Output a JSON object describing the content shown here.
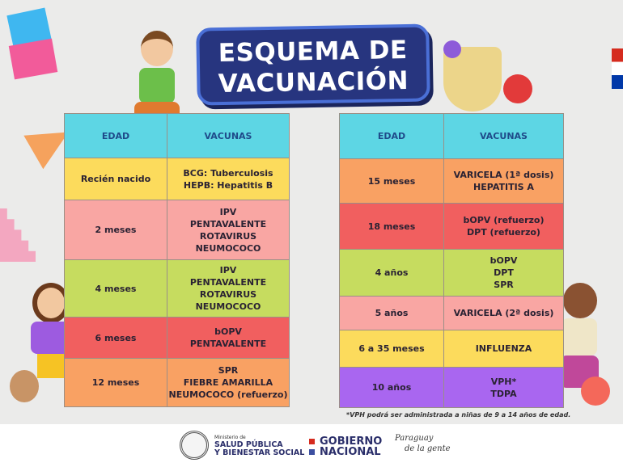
{
  "title": "ESQUEMA DE VACUNACIÓN",
  "headers": {
    "age": "EDAD",
    "vaccines": "VACUNAS"
  },
  "left_table": [
    {
      "age": "Recién nacido",
      "vaccines": "BCG: Tuberculosis\nHEPB: Hepatitis B",
      "color": "#fcdb5c"
    },
    {
      "age": "2 meses",
      "vaccines": "IPV\nPENTAVALENTE\nROTAVIRUS\nNEUMOCOCO",
      "color": "#f9a6a3"
    },
    {
      "age": "4 meses",
      "vaccines": "IPV\nPENTAVALENTE\nROTAVIRUS\nNEUMOCOCO",
      "color": "#c6dc5f"
    },
    {
      "age": "6 meses",
      "vaccines": "bOPV\nPENTAVALENTE",
      "color": "#f15f5f"
    },
    {
      "age": "12 meses",
      "vaccines": "SPR\nFIEBRE AMARILLA\nNEUMOCOCO (refuerzo)",
      "color": "#f9a163"
    }
  ],
  "right_table": [
    {
      "age": "15 meses",
      "vaccines": "VARICELA (1ª dosis)\nHEPATITIS A",
      "color": "#f9a163"
    },
    {
      "age": "18 meses",
      "vaccines": "bOPV (refuerzo)\nDPT (refuerzo)",
      "color": "#f15f5f"
    },
    {
      "age": "4 años",
      "vaccines": "bOPV\nDPT\nSPR",
      "color": "#c6dc5f"
    },
    {
      "age": "5 años",
      "vaccines": "VARICELA (2ª dosis)",
      "color": "#f9a6a3"
    },
    {
      "age": "6 a 35 meses",
      "vaccines": "INFLUENZA",
      "color": "#fcdb5c"
    },
    {
      "age": "10 años",
      "vaccines": "VPH*\nTDPA",
      "color": "#a966f0"
    }
  ],
  "note": "*VPH podrá ser administrada a niñas de 9 a 14 años de edad.",
  "footer": {
    "ministry_small": "Ministerio de",
    "ministry_line1": "SALUD PÚBLICA",
    "ministry_line2": "Y BIENESTAR SOCIAL",
    "gov_line1": "GOBIERNO",
    "gov_line2": "NACIONAL",
    "slogan_line1": "Paraguay",
    "slogan_line2": "de la gente"
  }
}
